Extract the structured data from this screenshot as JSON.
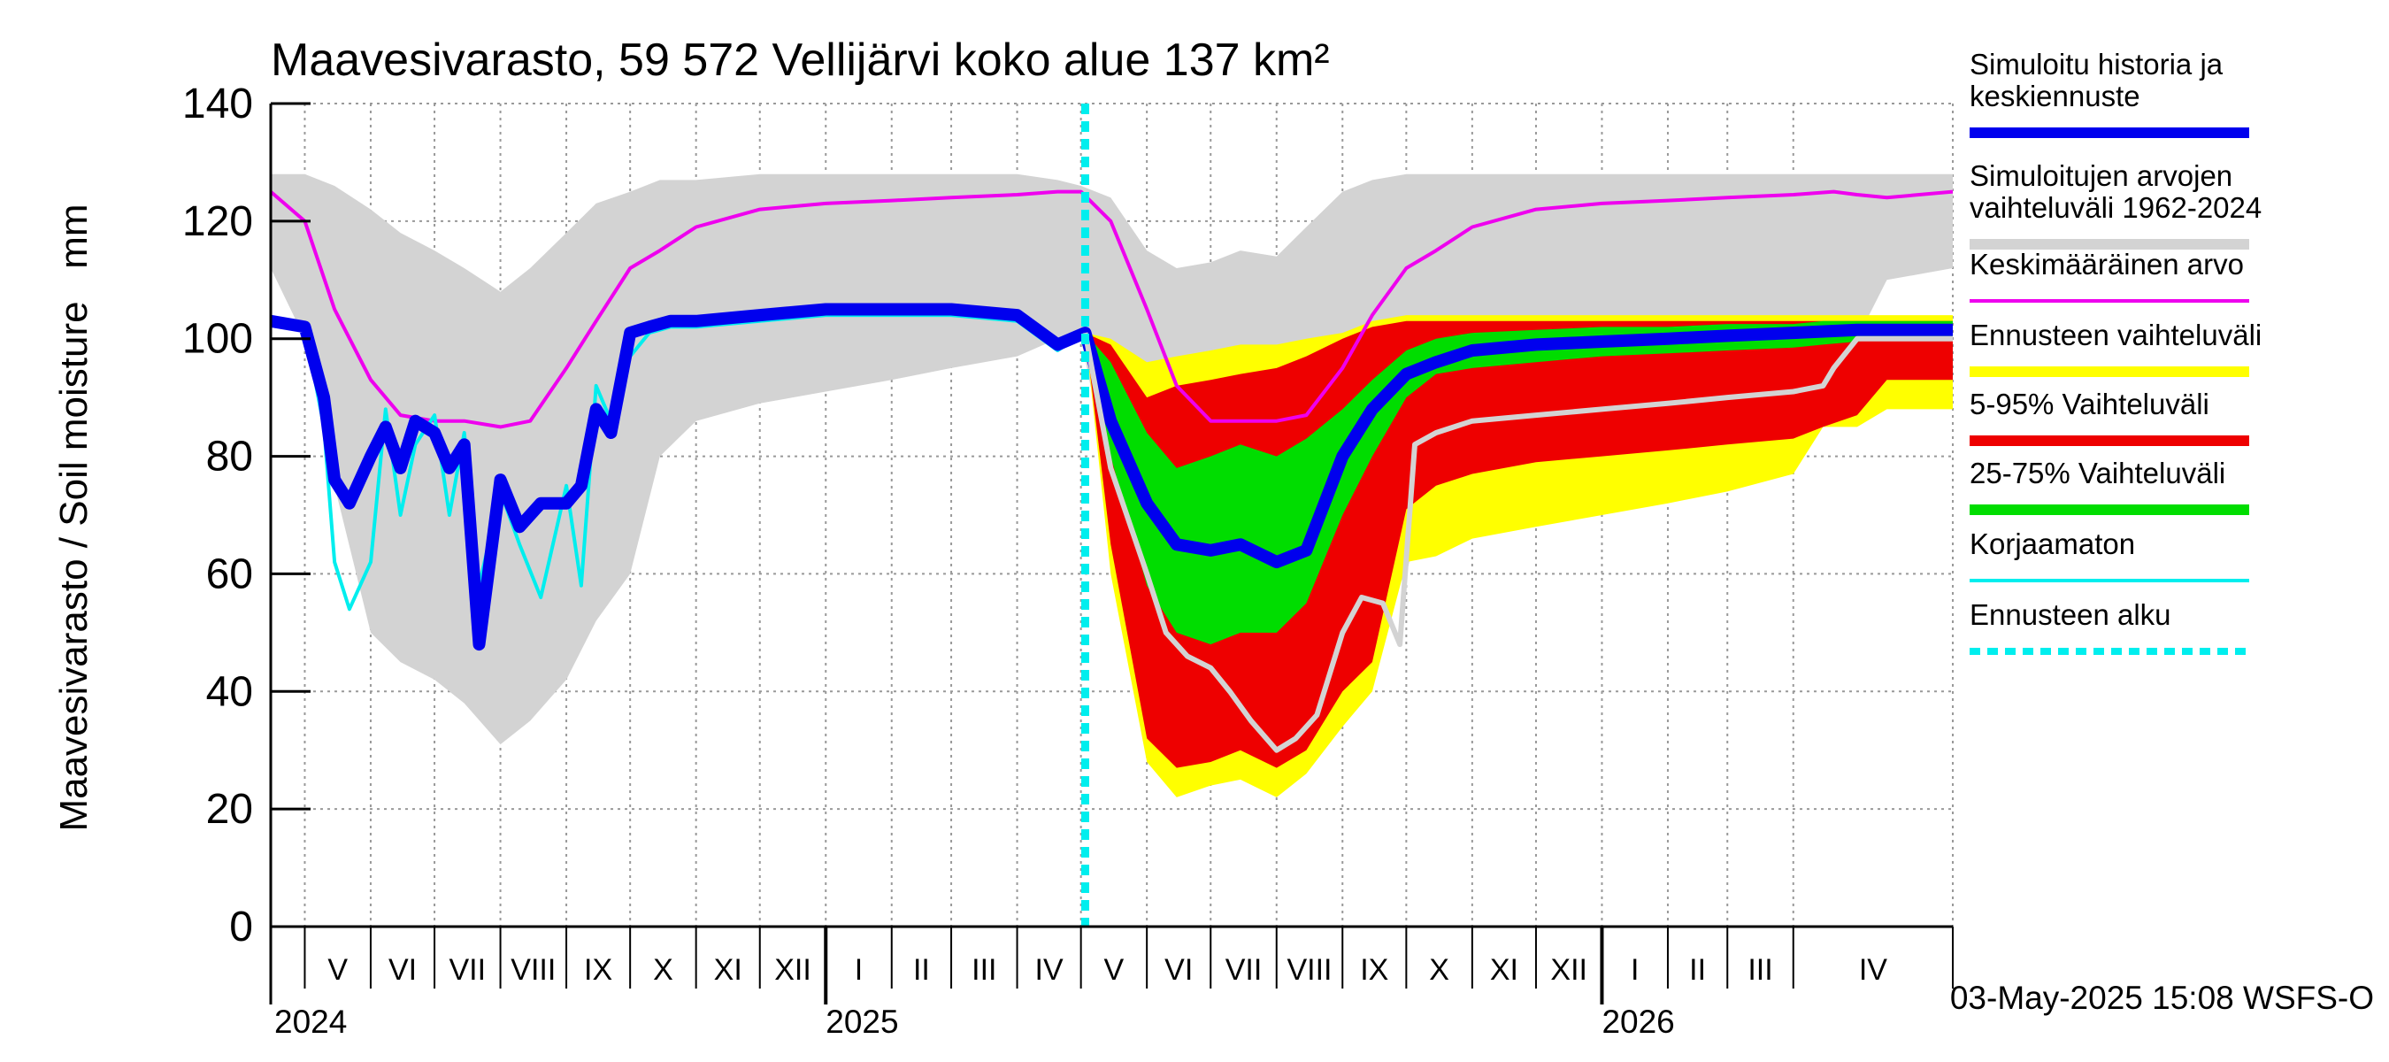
{
  "chart_data": {
    "type": "area",
    "title": "Maavesivarasto, 59 572 Vellijärvi koko alue 137 km²",
    "ylabel": "Maavesivarasto / Soil moisture   mm",
    "ylim": [
      0,
      140
    ],
    "yticks": [
      0,
      20,
      40,
      60,
      80,
      100,
      120,
      140
    ],
    "xlim": [
      "2024-04-15",
      "2026-06-15"
    ],
    "forecast_start": "2025-05-03",
    "grid": true,
    "months": [
      {
        "label": "V",
        "start": "2024-05-01"
      },
      {
        "label": "VI",
        "start": "2024-06-01"
      },
      {
        "label": "VII",
        "start": "2024-07-01"
      },
      {
        "label": "VIII",
        "start": "2024-08-01"
      },
      {
        "label": "IX",
        "start": "2024-09-01"
      },
      {
        "label": "X",
        "start": "2024-10-01"
      },
      {
        "label": "XI",
        "start": "2024-11-01"
      },
      {
        "label": "XII",
        "start": "2024-12-01"
      },
      {
        "label": "I",
        "start": "2025-01-01"
      },
      {
        "label": "II",
        "start": "2025-02-01"
      },
      {
        "label": "III",
        "start": "2025-03-01"
      },
      {
        "label": "IV",
        "start": "2025-04-01"
      },
      {
        "label": "V",
        "start": "2025-05-01"
      },
      {
        "label": "VI",
        "start": "2025-06-01"
      },
      {
        "label": "VII",
        "start": "2025-07-01"
      },
      {
        "label": "VIII",
        "start": "2025-08-01"
      },
      {
        "label": "IX",
        "start": "2025-09-01"
      },
      {
        "label": "X",
        "start": "2025-10-01"
      },
      {
        "label": "XI",
        "start": "2025-11-01"
      },
      {
        "label": "XII",
        "start": "2025-12-01"
      },
      {
        "label": "I",
        "start": "2026-01-01"
      },
      {
        "label": "II",
        "start": "2026-02-01"
      },
      {
        "label": "III",
        "start": "2026-03-01"
      },
      {
        "label": "IV",
        "start": "2026-04-01"
      }
    ],
    "years": [
      {
        "label": "2024",
        "date": "2024-04-15"
      },
      {
        "label": "2025",
        "date": "2025-01-01"
      },
      {
        "label": "2026",
        "date": "2026-01-01"
      }
    ],
    "timestamp": "03-May-2025 15:08 WSFS-O",
    "legend": [
      {
        "label": "Simuloitu historia ja keskiennuste",
        "color": "#0000ee",
        "style": "thick"
      },
      {
        "label": "Simuloitujen arvojen vaihteluväli 1962-2024",
        "color": "#d3d3d3",
        "style": "thick"
      },
      {
        "label": "Keskimääräinen arvo",
        "color": "#ee00ee",
        "style": "thin"
      },
      {
        "label": "Ennusteen vaihteluväli",
        "color": "#ffff00",
        "style": "thick"
      },
      {
        "label": "5-95% Vaihteluväli",
        "color": "#ee0000",
        "style": "thick"
      },
      {
        "label": "25-75% Vaihteluväli",
        "color": "#00dd00",
        "style": "thick"
      },
      {
        "label": "Korjaamaton",
        "color": "#00eeee",
        "style": "thin"
      },
      {
        "label": "Ennusteen alku",
        "color": "#00eeee",
        "style": "dashed"
      }
    ],
    "series": [
      {
        "name": "Simuloitujen arvojen vaihteluväli 1962-2024",
        "kind": "band",
        "color": "#d3d3d3",
        "x": [
          "2024-04-15",
          "2024-05-01",
          "2024-05-15",
          "2024-06-01",
          "2024-06-15",
          "2024-07-01",
          "2024-07-15",
          "2024-08-01",
          "2024-08-15",
          "2024-09-01",
          "2024-09-15",
          "2024-10-01",
          "2024-10-15",
          "2024-11-01",
          "2024-12-01",
          "2025-01-01",
          "2025-02-01",
          "2025-03-01",
          "2025-04-01",
          "2025-04-20",
          "2025-05-01",
          "2025-05-15",
          "2025-06-01",
          "2025-06-15",
          "2025-07-01",
          "2025-07-15",
          "2025-08-01",
          "2025-08-15",
          "2025-09-01",
          "2025-09-15",
          "2025-10-01",
          "2025-10-15",
          "2025-11-01",
          "2025-12-01",
          "2026-01-01",
          "2026-02-01",
          "2026-03-01",
          "2026-04-01",
          "2026-04-20",
          "2026-05-01",
          "2026-05-15",
          "2026-06-15"
        ],
        "low": [
          112,
          100,
          75,
          50,
          45,
          42,
          38,
          31,
          35,
          42,
          52,
          60,
          80,
          86,
          89,
          91,
          93,
          95,
          97,
          100,
          100,
          75,
          50,
          45,
          42,
          38,
          31,
          35,
          42,
          52,
          60,
          80,
          86,
          89,
          91,
          93,
          95,
          97,
          100,
          100,
          110,
          112
        ],
        "high": [
          128,
          128,
          126,
          122,
          118,
          115,
          112,
          108,
          112,
          118,
          123,
          125,
          127,
          127,
          128,
          128,
          128,
          128,
          128,
          127,
          126,
          124,
          115,
          112,
          113,
          115,
          114,
          119,
          125,
          127,
          128,
          128,
          128,
          128,
          128,
          128,
          128,
          128,
          128,
          128,
          128,
          128
        ]
      },
      {
        "name": "Keskimääräinen arvo",
        "kind": "line",
        "color": "#ee00ee",
        "x": [
          "2024-04-15",
          "2024-05-01",
          "2024-05-15",
          "2024-06-01",
          "2024-06-15",
          "2024-07-01",
          "2024-07-15",
          "2024-08-01",
          "2024-08-15",
          "2024-09-01",
          "2024-09-15",
          "2024-10-01",
          "2024-10-15",
          "2024-11-01",
          "2024-12-01",
          "2025-01-01",
          "2025-02-01",
          "2025-03-01",
          "2025-04-01",
          "2025-04-20",
          "2025-05-01",
          "2025-05-15",
          "2025-06-01",
          "2025-06-15",
          "2025-07-01",
          "2025-07-15",
          "2025-08-01",
          "2025-08-15",
          "2025-09-01",
          "2025-09-15",
          "2025-10-01",
          "2025-10-15",
          "2025-11-01",
          "2025-12-01",
          "2026-01-01",
          "2026-02-01",
          "2026-03-01",
          "2026-04-01",
          "2026-04-20",
          "2026-05-01",
          "2026-05-15",
          "2026-06-15"
        ],
        "values": [
          125,
          120,
          105,
          93,
          87,
          86,
          86,
          85,
          86,
          95,
          103,
          112,
          115,
          119,
          122,
          123,
          123.5,
          124,
          124.5,
          125,
          125,
          120,
          105,
          92,
          86,
          86,
          86,
          87,
          95,
          104,
          112,
          115,
          119,
          122,
          123,
          123.5,
          124,
          124.5,
          125,
          124.5,
          124,
          125
        ]
      },
      {
        "name": "Ennusteen vaihteluväli",
        "kind": "band",
        "color": "#ffff00",
        "x": [
          "2025-05-03",
          "2025-05-15",
          "2025-06-01",
          "2025-06-15",
          "2025-07-01",
          "2025-07-15",
          "2025-08-01",
          "2025-08-15",
          "2025-09-01",
          "2025-09-15",
          "2025-10-01",
          "2025-10-15",
          "2025-11-01",
          "2025-12-01",
          "2026-01-01",
          "2026-02-01",
          "2026-03-01",
          "2026-04-01",
          "2026-04-15",
          "2026-05-01",
          "2026-05-15",
          "2026-06-15"
        ],
        "low": [
          101,
          60,
          28,
          22,
          24,
          25,
          22,
          26,
          34,
          40,
          62,
          63,
          66,
          68,
          70,
          72,
          74,
          77,
          85,
          85,
          88,
          88
        ],
        "high": [
          101,
          100,
          96,
          97,
          98,
          99,
          99,
          100,
          101,
          103,
          104,
          104,
          104,
          104,
          104,
          104,
          104,
          104,
          104,
          104,
          104,
          104
        ]
      },
      {
        "name": "5-95% Vaihteluväli",
        "kind": "band",
        "color": "#ee0000",
        "x": [
          "2025-05-03",
          "2025-05-15",
          "2025-06-01",
          "2025-06-15",
          "2025-07-01",
          "2025-07-15",
          "2025-08-01",
          "2025-08-15",
          "2025-09-01",
          "2025-09-15",
          "2025-10-01",
          "2025-10-15",
          "2025-11-01",
          "2025-12-01",
          "2026-01-01",
          "2026-02-01",
          "2026-03-01",
          "2026-04-01",
          "2026-04-15",
          "2026-05-01",
          "2026-05-15",
          "2026-06-15"
        ],
        "low": [
          101,
          65,
          32,
          27,
          28,
          30,
          27,
          30,
          40,
          45,
          71,
          75,
          77,
          79,
          80,
          81,
          82,
          83,
          85,
          87,
          93,
          93
        ],
        "high": [
          101,
          99,
          90,
          92,
          93,
          94,
          95,
          97,
          100,
          102,
          103,
          103,
          103,
          103,
          103,
          103,
          103,
          103,
          103,
          103,
          103,
          103
        ]
      },
      {
        "name": "25-75% Vaihteluväli",
        "kind": "band",
        "color": "#00dd00",
        "x": [
          "2025-05-03",
          "2025-05-15",
          "2025-06-01",
          "2025-06-15",
          "2025-07-01",
          "2025-07-15",
          "2025-08-01",
          "2025-08-15",
          "2025-09-01",
          "2025-09-15",
          "2025-10-01",
          "2025-10-15",
          "2025-11-01",
          "2025-12-01",
          "2026-01-01",
          "2026-02-01",
          "2026-03-01",
          "2026-04-01",
          "2026-04-15",
          "2026-05-01",
          "2026-05-15",
          "2026-06-15"
        ],
        "low": [
          101,
          80,
          58,
          50,
          48,
          50,
          50,
          55,
          70,
          80,
          90,
          94,
          95,
          96,
          97,
          97.5,
          98,
          98.5,
          99,
          99.5,
          100,
          100
        ],
        "high": [
          101,
          96,
          84,
          78,
          80,
          82,
          80,
          83,
          88,
          93,
          98,
          100,
          101,
          101.5,
          102,
          102,
          102.5,
          102.5,
          103,
          103,
          103,
          103
        ]
      },
      {
        "name": "Korjaamaton",
        "kind": "line",
        "color": "#00eeee",
        "x": [
          "2024-04-15",
          "2024-05-01",
          "2024-05-10",
          "2024-05-15",
          "2024-05-22",
          "2024-06-01",
          "2024-06-08",
          "2024-06-15",
          "2024-06-22",
          "2024-07-01",
          "2024-07-08",
          "2024-07-15",
          "2024-07-22",
          "2024-08-01",
          "2024-08-10",
          "2024-08-20",
          "2024-09-01",
          "2024-09-08",
          "2024-09-15",
          "2024-09-22",
          "2024-10-01",
          "2024-10-10",
          "2024-10-20",
          "2024-11-01",
          "2024-12-01",
          "2025-01-01",
          "2025-02-01",
          "2025-03-01",
          "2025-04-01",
          "2025-04-20",
          "2025-05-03"
        ],
        "values": [
          103,
          102,
          85,
          62,
          54,
          62,
          88,
          70,
          82,
          87,
          70,
          84,
          58,
          74,
          65,
          56,
          75,
          58,
          92,
          86,
          97,
          101,
          102,
          102,
          103,
          104,
          104,
          104,
          103,
          98,
          101
        ]
      },
      {
        "name": "Simuloitu historia ja keskiennuste",
        "kind": "line",
        "color": "#0000ee",
        "x": [
          "2024-04-15",
          "2024-05-01",
          "2024-05-10",
          "2024-05-15",
          "2024-05-22",
          "2024-06-01",
          "2024-06-08",
          "2024-06-15",
          "2024-06-22",
          "2024-07-01",
          "2024-07-08",
          "2024-07-15",
          "2024-07-22",
          "2024-08-01",
          "2024-08-10",
          "2024-08-20",
          "2024-09-01",
          "2024-09-08",
          "2024-09-15",
          "2024-09-22",
          "2024-10-01",
          "2024-10-10",
          "2024-10-20",
          "2024-11-01",
          "2024-12-01",
          "2025-01-01",
          "2025-02-01",
          "2025-03-01",
          "2025-04-01",
          "2025-04-20",
          "2025-05-03",
          "2025-05-15",
          "2025-06-01",
          "2025-06-15",
          "2025-07-01",
          "2025-07-15",
          "2025-08-01",
          "2025-08-15",
          "2025-09-01",
          "2025-09-15",
          "2025-10-01",
          "2025-10-15",
          "2025-11-01",
          "2025-12-01",
          "2026-01-01",
          "2026-02-01",
          "2026-03-01",
          "2026-04-01",
          "2026-05-01",
          "2026-06-15"
        ],
        "values": [
          103,
          102,
          90,
          76,
          72,
          80,
          85,
          78,
          86,
          84,
          78,
          82,
          48,
          76,
          68,
          72,
          72,
          75,
          88,
          84,
          101,
          102,
          103,
          103,
          104,
          105,
          105,
          105,
          104,
          99,
          101,
          86,
          72,
          65,
          64,
          65,
          62,
          64,
          80,
          88,
          94,
          96,
          98,
          99,
          99.5,
          100,
          100.5,
          101,
          101.5,
          101.5
        ]
      },
      {
        "name": "",
        "kind": "line",
        "color": "#d3d3d3",
        "x": [
          "2025-05-03",
          "2025-05-15",
          "2025-06-01",
          "2025-06-10",
          "2025-06-20",
          "2025-07-01",
          "2025-07-10",
          "2025-07-20",
          "2025-08-01",
          "2025-08-10",
          "2025-08-20",
          "2025-09-01",
          "2025-09-10",
          "2025-09-20",
          "2025-09-28",
          "2025-10-05",
          "2025-10-15",
          "2025-11-01",
          "2025-12-01",
          "2026-01-01",
          "2026-02-01",
          "2026-03-01",
          "2026-04-01",
          "2026-04-15",
          "2026-04-20",
          "2026-05-01",
          "2026-06-15"
        ],
        "values": [
          101,
          78,
          60,
          50,
          46,
          44,
          40,
          35,
          30,
          32,
          36,
          50,
          56,
          55,
          48,
          82,
          84,
          86,
          87,
          88,
          89,
          90,
          91,
          92,
          95,
          100,
          100
        ]
      }
    ]
  }
}
